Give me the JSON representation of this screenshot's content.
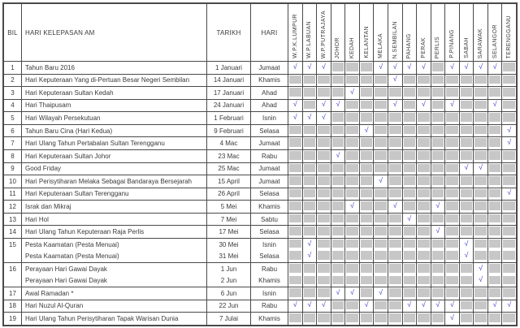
{
  "table": {
    "columns": {
      "bil": "BIL",
      "holiday": "HARI KELEPASAN AM",
      "date": "TARIKH",
      "day": "HARI"
    },
    "states": [
      "W.P.K.LUMPUR",
      "W.P.LABUAN",
      "W.P.PUTRAJAYA",
      "JOHOR",
      "KEDAH",
      "KELANTAN",
      "MELAKA",
      "N.SEMBILAN",
      "PAHANG",
      "PERAK",
      "PERLIS",
      "P.PINANG",
      "SABAH",
      "SARAWAK",
      "SELANGOR",
      "TERENGGANU"
    ],
    "check_symbol": "√",
    "colors": {
      "check_mark": "#4444cc",
      "blocked_cell": "#c7c7c7",
      "grid_border": "#4a4a4a",
      "text": "#3a3a3a"
    },
    "rows": [
      {
        "bil": "1",
        "lines": [
          {
            "name": "Tahun Baru 2016",
            "date": "1 Januari",
            "day": "Jumaat",
            "checks": [
              1,
              1,
              1,
              0,
              0,
              0,
              1,
              1,
              1,
              1,
              0,
              1,
              1,
              1,
              1,
              0
            ]
          }
        ]
      },
      {
        "bil": "2",
        "lines": [
          {
            "name": "Hari Keputeraan Yang di-Pertuan Besar Negeri Sembilan",
            "date": "14 Januari",
            "day": "Khamis",
            "checks": [
              0,
              0,
              0,
              0,
              0,
              0,
              0,
              1,
              0,
              0,
              0,
              0,
              0,
              0,
              0,
              0
            ]
          }
        ]
      },
      {
        "bil": "3",
        "lines": [
          {
            "name": "Hari Keputeraan Sultan Kedah",
            "date": "17 Januari",
            "day": "Ahad",
            "checks": [
              0,
              0,
              0,
              0,
              1,
              0,
              0,
              0,
              0,
              0,
              0,
              0,
              0,
              0,
              0,
              0
            ]
          }
        ]
      },
      {
        "bil": "4",
        "lines": [
          {
            "name": "Hari Thaipusam",
            "date": "24 Januari",
            "day": "Ahad",
            "checks": [
              1,
              0,
              1,
              1,
              0,
              0,
              0,
              1,
              0,
              1,
              0,
              1,
              0,
              0,
              1,
              0
            ]
          }
        ]
      },
      {
        "bil": "5",
        "lines": [
          {
            "name": "Hari Wilayah Persekutuan",
            "date": "1 Februari",
            "day": "Isnin",
            "checks": [
              1,
              1,
              1,
              0,
              0,
              0,
              0,
              0,
              0,
              0,
              0,
              0,
              0,
              0,
              0,
              0
            ]
          }
        ]
      },
      {
        "bil": "6",
        "lines": [
          {
            "name": "Tahun Baru Cina (Hari Kedua)",
            "date": "9 Februari",
            "day": "Selasa",
            "checks": [
              0,
              0,
              0,
              0,
              0,
              1,
              0,
              0,
              0,
              0,
              0,
              0,
              0,
              0,
              0,
              1
            ]
          }
        ]
      },
      {
        "bil": "7",
        "lines": [
          {
            "name": "Hari Ulang Tahun Pertabalan Sultan Terengganu",
            "date": "4 Mac",
            "day": "Jumaat",
            "checks": [
              0,
              0,
              0,
              0,
              0,
              0,
              0,
              0,
              0,
              0,
              0,
              0,
              0,
              0,
              0,
              1
            ]
          }
        ]
      },
      {
        "bil": "8",
        "lines": [
          {
            "name": "Hari Keputeraan Sultan Johor",
            "date": "23 Mac",
            "day": "Rabu",
            "checks": [
              0,
              0,
              0,
              1,
              0,
              0,
              0,
              0,
              0,
              0,
              0,
              0,
              0,
              0,
              0,
              0
            ]
          }
        ]
      },
      {
        "bil": "9",
        "lines": [
          {
            "name": "Good Friday",
            "date": "25 Mac",
            "day": "Jumaat",
            "checks": [
              0,
              0,
              0,
              0,
              0,
              0,
              0,
              0,
              0,
              0,
              0,
              0,
              1,
              1,
              0,
              0
            ]
          }
        ]
      },
      {
        "bil": "10",
        "lines": [
          {
            "name": "Hari Perisytiharan Melaka Sebagai Bandaraya Bersejarah",
            "date": "15 April",
            "day": "Jumaat",
            "checks": [
              0,
              0,
              0,
              0,
              0,
              0,
              1,
              0,
              0,
              0,
              0,
              0,
              0,
              0,
              0,
              0
            ]
          }
        ]
      },
      {
        "bil": "11",
        "lines": [
          {
            "name": "Hari Keputeraan Sultan Terengganu",
            "date": "26 April",
            "day": "Selasa",
            "checks": [
              0,
              0,
              0,
              0,
              0,
              0,
              0,
              0,
              0,
              0,
              0,
              0,
              0,
              0,
              0,
              1
            ]
          }
        ]
      },
      {
        "bil": "12",
        "lines": [
          {
            "name": "Israk dan Mikraj",
            "date": "5 Mei",
            "day": "Khamis",
            "checks": [
              0,
              0,
              0,
              0,
              1,
              0,
              0,
              1,
              0,
              0,
              1,
              0,
              0,
              0,
              0,
              0
            ]
          }
        ]
      },
      {
        "bil": "13",
        "lines": [
          {
            "name": "Hari Hol",
            "date": "7 Mei",
            "day": "Sabtu",
            "checks": [
              0,
              0,
              0,
              0,
              0,
              0,
              0,
              0,
              1,
              0,
              0,
              0,
              0,
              0,
              0,
              0
            ]
          }
        ]
      },
      {
        "bil": "14",
        "lines": [
          {
            "name": "Hari Ulang Tahun Keputeraan Raja Perlis",
            "date": "17 Mei",
            "day": "Selasa",
            "checks": [
              0,
              0,
              0,
              0,
              0,
              0,
              0,
              0,
              0,
              0,
              1,
              0,
              0,
              0,
              0,
              0
            ]
          }
        ]
      },
      {
        "bil": "15",
        "lines": [
          {
            "name": "Pesta Kaamatan (Pesta Menuai)",
            "date": "30 Mei",
            "day": "Isnin",
            "checks": [
              0,
              1,
              0,
              0,
              0,
              0,
              0,
              0,
              0,
              0,
              0,
              0,
              1,
              0,
              0,
              0
            ]
          },
          {
            "name": "Pesta Kaamatan (Pesta Menuai)",
            "date": "31 Mei",
            "day": "Selasa",
            "checks": [
              0,
              1,
              0,
              0,
              0,
              0,
              0,
              0,
              0,
              0,
              0,
              0,
              1,
              0,
              0,
              0
            ]
          }
        ]
      },
      {
        "bil": "16",
        "lines": [
          {
            "name": "Perayaan Hari Gawai Dayak",
            "date": "1 Jun",
            "day": "Rabu",
            "checks": [
              0,
              0,
              0,
              0,
              0,
              0,
              0,
              0,
              0,
              0,
              0,
              0,
              0,
              1,
              0,
              0
            ]
          },
          {
            "name": "Perayaan Hari Gawai Dayak",
            "date": "2 Jun",
            "day": "Khamis",
            "checks": [
              0,
              0,
              0,
              0,
              0,
              0,
              0,
              0,
              0,
              0,
              0,
              0,
              0,
              1,
              0,
              0
            ]
          }
        ]
      },
      {
        "bil": "17",
        "lines": [
          {
            "name": "Awal Ramadan *",
            "date": "6 Jun",
            "day": "Isnin",
            "checks": [
              0,
              0,
              0,
              1,
              1,
              0,
              1,
              0,
              0,
              0,
              0,
              0,
              0,
              0,
              0,
              0
            ]
          }
        ]
      },
      {
        "bil": "18",
        "lines": [
          {
            "name": "Hari Nuzul Al-Quran",
            "date": "22 Jun",
            "day": "Rabu",
            "checks": [
              1,
              1,
              1,
              0,
              0,
              1,
              0,
              0,
              1,
              1,
              1,
              1,
              0,
              0,
              1,
              1
            ]
          }
        ]
      },
      {
        "bil": "19",
        "lines": [
          {
            "name": "Hari Ulang Tahun Perisytiharan Tapak Warisan Dunia",
            "date": "7 Julai",
            "day": "Khamis",
            "checks": [
              0,
              0,
              0,
              0,
              0,
              0,
              0,
              0,
              0,
              0,
              0,
              1,
              0,
              0,
              0,
              0
            ]
          }
        ]
      }
    ]
  }
}
